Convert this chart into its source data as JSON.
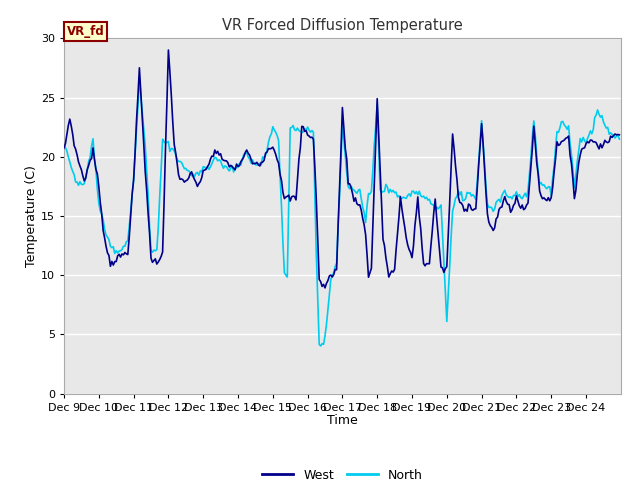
{
  "title": "VR Forced Diffusion Temperature",
  "xlabel": "Time",
  "ylabel": "Temperature (C)",
  "ylim": [
    0,
    30
  ],
  "xlim": [
    0,
    384
  ],
  "bg_color": "#e8e8e8",
  "fig_bg": "#ffffff",
  "west_color": "#00008B",
  "north_color": "#00CCEE",
  "grid_color": "#ffffff",
  "legend_west": "West",
  "legend_north": "North",
  "label_box_color": "#ffffcc",
  "label_box_edge": "#8B0000",
  "label_text": "VR_fd",
  "xtick_labels": [
    "Dec 9",
    "Dec 10",
    "Dec 11",
    "Dec 12",
    "Dec 13",
    "Dec 14",
    "Dec 15",
    "Dec 16",
    "Dec 17",
    "Dec 18",
    "Dec 19",
    "Dec 20",
    "Dec 21",
    "Dec 22",
    "Dec 23",
    "Dec 24"
  ],
  "xtick_positions": [
    0,
    24,
    48,
    72,
    96,
    120,
    144,
    168,
    192,
    216,
    240,
    264,
    288,
    312,
    336,
    360
  ],
  "keyframes_west": [
    [
      0,
      20.5
    ],
    [
      4,
      23.3
    ],
    [
      8,
      20.5
    ],
    [
      14,
      18.0
    ],
    [
      20,
      20.5
    ],
    [
      24,
      17.5
    ],
    [
      28,
      13.0
    ],
    [
      32,
      11.0
    ],
    [
      38,
      11.5
    ],
    [
      44,
      12.0
    ],
    [
      48,
      18.0
    ],
    [
      52,
      27.5
    ],
    [
      56,
      19.0
    ],
    [
      60,
      11.5
    ],
    [
      64,
      11.0
    ],
    [
      68,
      12.0
    ],
    [
      72,
      29.0
    ],
    [
      76,
      21.0
    ],
    [
      80,
      18.0
    ],
    [
      84,
      18.0
    ],
    [
      88,
      18.5
    ],
    [
      92,
      17.5
    ],
    [
      96,
      18.5
    ],
    [
      100,
      19.5
    ],
    [
      104,
      20.5
    ],
    [
      108,
      20.0
    ],
    [
      112,
      19.5
    ],
    [
      118,
      19.0
    ],
    [
      122,
      19.5
    ],
    [
      126,
      20.5
    ],
    [
      130,
      19.5
    ],
    [
      136,
      19.5
    ],
    [
      140,
      20.5
    ],
    [
      144,
      21.0
    ],
    [
      148,
      19.5
    ],
    [
      152,
      16.5
    ],
    [
      156,
      16.5
    ],
    [
      160,
      16.5
    ],
    [
      164,
      22.5
    ],
    [
      168,
      22.0
    ],
    [
      172,
      21.5
    ],
    [
      174,
      16.5
    ],
    [
      176,
      9.5
    ],
    [
      180,
      9.0
    ],
    [
      184,
      10.0
    ],
    [
      188,
      10.5
    ],
    [
      192,
      24.0
    ],
    [
      196,
      18.0
    ],
    [
      200,
      16.5
    ],
    [
      204,
      16.0
    ],
    [
      208,
      13.5
    ],
    [
      210,
      10.0
    ],
    [
      212,
      10.5
    ],
    [
      216,
      25.0
    ],
    [
      218,
      19.0
    ],
    [
      220,
      13.0
    ],
    [
      222,
      11.5
    ],
    [
      224,
      10.0
    ],
    [
      228,
      10.5
    ],
    [
      232,
      16.5
    ],
    [
      236,
      13.0
    ],
    [
      240,
      11.5
    ],
    [
      244,
      16.5
    ],
    [
      248,
      11.0
    ],
    [
      252,
      11.0
    ],
    [
      256,
      16.5
    ],
    [
      260,
      10.5
    ],
    [
      264,
      10.5
    ],
    [
      268,
      22.0
    ],
    [
      272,
      16.5
    ],
    [
      276,
      15.5
    ],
    [
      280,
      16.0
    ],
    [
      284,
      15.5
    ],
    [
      288,
      23.0
    ],
    [
      292,
      15.0
    ],
    [
      296,
      13.5
    ],
    [
      300,
      15.5
    ],
    [
      304,
      16.5
    ],
    [
      308,
      15.5
    ],
    [
      312,
      16.5
    ],
    [
      316,
      15.5
    ],
    [
      320,
      16.0
    ],
    [
      324,
      22.5
    ],
    [
      328,
      17.0
    ],
    [
      330,
      16.5
    ],
    [
      334,
      16.5
    ],
    [
      336,
      16.5
    ],
    [
      340,
      21.0
    ],
    [
      344,
      21.5
    ],
    [
      348,
      21.5
    ],
    [
      352,
      16.5
    ],
    [
      356,
      20.5
    ],
    [
      360,
      21.0
    ],
    [
      364,
      21.5
    ],
    [
      368,
      21.0
    ],
    [
      372,
      21.0
    ],
    [
      376,
      21.5
    ],
    [
      383,
      22.0
    ]
  ],
  "keyframes_north": [
    [
      0,
      21.5
    ],
    [
      4,
      19.5
    ],
    [
      8,
      18.0
    ],
    [
      14,
      17.5
    ],
    [
      20,
      21.5
    ],
    [
      24,
      16.0
    ],
    [
      28,
      14.0
    ],
    [
      32,
      12.5
    ],
    [
      38,
      12.0
    ],
    [
      44,
      13.0
    ],
    [
      48,
      18.0
    ],
    [
      52,
      26.5
    ],
    [
      56,
      21.0
    ],
    [
      60,
      12.0
    ],
    [
      64,
      12.0
    ],
    [
      68,
      21.5
    ],
    [
      72,
      21.0
    ],
    [
      76,
      20.5
    ],
    [
      80,
      19.5
    ],
    [
      84,
      19.0
    ],
    [
      88,
      18.5
    ],
    [
      92,
      18.5
    ],
    [
      96,
      19.0
    ],
    [
      100,
      19.0
    ],
    [
      104,
      20.0
    ],
    [
      108,
      19.5
    ],
    [
      112,
      19.0
    ],
    [
      118,
      19.0
    ],
    [
      122,
      19.5
    ],
    [
      126,
      20.5
    ],
    [
      130,
      19.5
    ],
    [
      136,
      19.5
    ],
    [
      140,
      20.5
    ],
    [
      144,
      22.5
    ],
    [
      148,
      21.5
    ],
    [
      152,
      10.0
    ],
    [
      154,
      10.0
    ],
    [
      156,
      22.5
    ],
    [
      160,
      22.5
    ],
    [
      164,
      22.0
    ],
    [
      168,
      22.5
    ],
    [
      172,
      22.0
    ],
    [
      174,
      12.0
    ],
    [
      176,
      4.0
    ],
    [
      180,
      4.5
    ],
    [
      184,
      9.5
    ],
    [
      188,
      11.0
    ],
    [
      192,
      22.5
    ],
    [
      196,
      17.5
    ],
    [
      200,
      17.0
    ],
    [
      204,
      17.0
    ],
    [
      208,
      14.5
    ],
    [
      210,
      17.0
    ],
    [
      212,
      17.0
    ],
    [
      216,
      24.5
    ],
    [
      218,
      17.5
    ],
    [
      220,
      17.0
    ],
    [
      222,
      17.5
    ],
    [
      224,
      17.0
    ],
    [
      228,
      17.0
    ],
    [
      232,
      16.5
    ],
    [
      236,
      16.5
    ],
    [
      240,
      17.0
    ],
    [
      244,
      17.0
    ],
    [
      248,
      16.5
    ],
    [
      252,
      16.5
    ],
    [
      256,
      15.5
    ],
    [
      260,
      16.0
    ],
    [
      264,
      6.0
    ],
    [
      268,
      15.5
    ],
    [
      272,
      17.0
    ],
    [
      276,
      16.5
    ],
    [
      280,
      17.0
    ],
    [
      284,
      16.5
    ],
    [
      288,
      23.0
    ],
    [
      292,
      16.0
    ],
    [
      296,
      15.5
    ],
    [
      300,
      16.5
    ],
    [
      304,
      17.0
    ],
    [
      308,
      16.5
    ],
    [
      312,
      17.0
    ],
    [
      316,
      16.5
    ],
    [
      320,
      17.0
    ],
    [
      324,
      23.0
    ],
    [
      328,
      17.5
    ],
    [
      330,
      17.5
    ],
    [
      334,
      17.5
    ],
    [
      336,
      17.0
    ],
    [
      340,
      22.0
    ],
    [
      344,
      23.0
    ],
    [
      348,
      22.5
    ],
    [
      352,
      17.5
    ],
    [
      356,
      21.5
    ],
    [
      360,
      21.5
    ],
    [
      364,
      22.0
    ],
    [
      368,
      24.0
    ],
    [
      372,
      23.0
    ],
    [
      376,
      22.0
    ],
    [
      383,
      21.5
    ]
  ]
}
